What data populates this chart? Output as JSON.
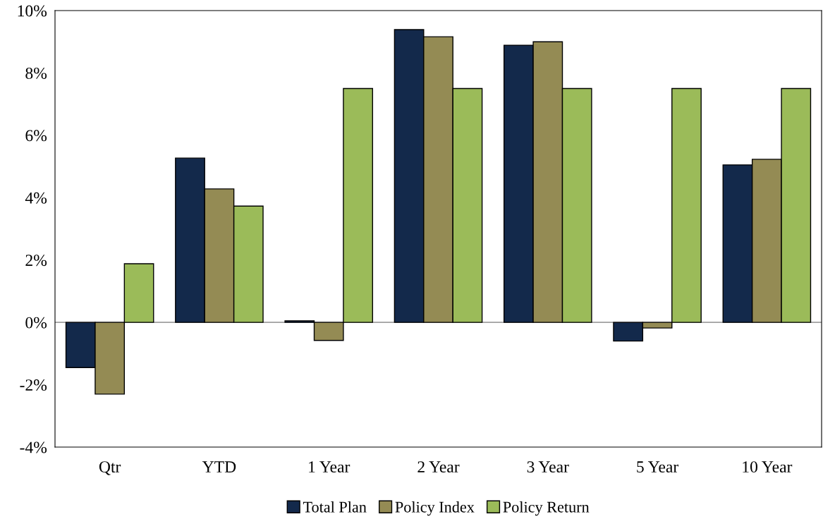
{
  "chart_data": {
    "type": "bar",
    "categories": [
      "Qtr",
      "YTD",
      "1 Year",
      "2 Year",
      "3 Year",
      "5 Year",
      "10 Year"
    ],
    "series": [
      {
        "name": "Total Plan",
        "color": "#13294b",
        "values": [
          -1.45,
          5.27,
          0.05,
          9.39,
          8.89,
          -0.6,
          5.05
        ]
      },
      {
        "name": "Policy Index",
        "color": "#948b54",
        "values": [
          -2.3,
          4.28,
          -0.58,
          9.16,
          9.0,
          -0.18,
          5.23
        ]
      },
      {
        "name": "Policy Return",
        "color": "#9bbb59",
        "values": [
          1.88,
          3.73,
          7.5,
          7.5,
          7.5,
          7.5,
          7.5
        ]
      }
    ],
    "ylim": [
      -4,
      10
    ],
    "yticks": [
      {
        "value": -4,
        "label": "-4%"
      },
      {
        "value": -2,
        "label": "-2%"
      },
      {
        "value": 0,
        "label": "0%"
      },
      {
        "value": 2,
        "label": "2%"
      },
      {
        "value": 4,
        "label": "4%"
      },
      {
        "value": 6,
        "label": "6%"
      },
      {
        "value": 8,
        "label": "8%"
      },
      {
        "value": 10,
        "label": "10%"
      }
    ],
    "legend": "bottom"
  }
}
